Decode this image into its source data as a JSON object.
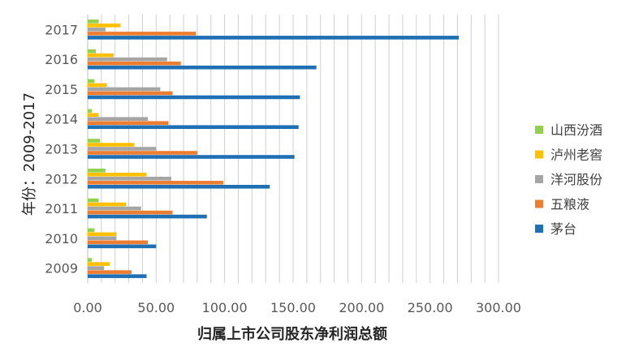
{
  "chart_data": {
    "type": "bar",
    "orientation": "horizontal",
    "xlabel": "归属上市公司股东净利润总额",
    "ylabel": "年份：2009-2017",
    "categories": [
      "2009",
      "2010",
      "2011",
      "2012",
      "2013",
      "2014",
      "2015",
      "2016",
      "2017"
    ],
    "xlim": [
      0,
      300
    ],
    "xticks": [
      "0.00",
      "50.00",
      "100.00",
      "150.00",
      "200.00",
      "250.00",
      "300.00"
    ],
    "grid": true,
    "legend_position": "right",
    "series": [
      {
        "name": "山西汾酒",
        "color": "#92d050",
        "values": [
          3,
          5,
          8,
          13,
          9,
          3,
          5,
          6,
          8
        ]
      },
      {
        "name": "泸州老窖",
        "color": "#ffc000",
        "values": [
          16,
          21,
          28,
          43,
          34,
          8,
          14,
          19,
          24
        ]
      },
      {
        "name": "洋河股份",
        "color": "#a5a5a5",
        "values": [
          12,
          21,
          39,
          61,
          50,
          44,
          53,
          58,
          13
        ]
      },
      {
        "name": "五粮液",
        "color": "#ed7d31",
        "values": [
          32,
          44,
          62,
          99,
          80,
          59,
          62,
          68,
          79
        ]
      },
      {
        "name": "茅台",
        "color": "#1f6fb5",
        "values": [
          43,
          50,
          87,
          133,
          151,
          154,
          155,
          167,
          271
        ]
      }
    ]
  }
}
